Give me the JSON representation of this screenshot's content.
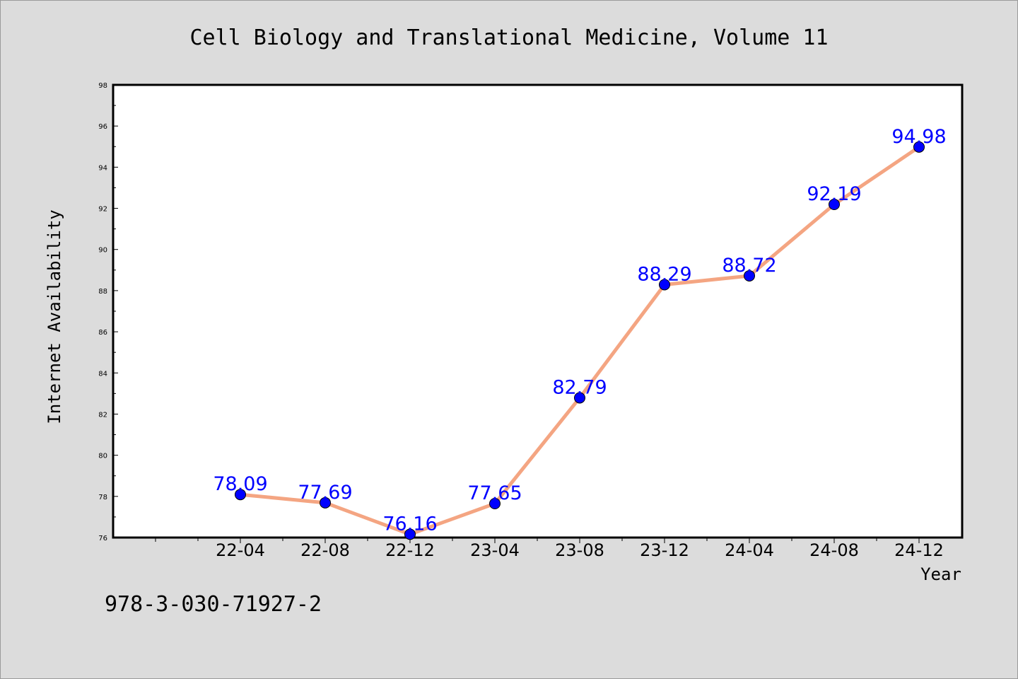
{
  "chart_data": {
    "type": "line",
    "title": "Cell Biology and Translational Medicine, Volume 11",
    "xlabel": "Year",
    "ylabel": "Internet Availability",
    "categories": [
      "22-04",
      "22-08",
      "22-12",
      "23-04",
      "23-08",
      "23-12",
      "24-04",
      "24-08",
      "24-12"
    ],
    "series": [
      {
        "values": [
          78.09,
          77.69,
          76.16,
          77.65,
          82.79,
          88.29,
          88.72,
          92.19,
          94.98
        ],
        "labels": [
          "78.09",
          "77.69",
          "76.16",
          "77.65",
          "82.79",
          "88.29",
          "88.72",
          "92.19",
          "94.98"
        ],
        "line_color": "#f4a582",
        "marker_color": "#0000ff"
      }
    ],
    "ylim": [
      76,
      98
    ],
    "yticks": [
      "76",
      "78",
      "80",
      "82",
      "84",
      "86",
      "88",
      "90",
      "92",
      "94",
      "96",
      "98"
    ],
    "grid": false,
    "legend": "none",
    "label_color": "#0000ff"
  },
  "footnote": "978-3-030-71927-2"
}
